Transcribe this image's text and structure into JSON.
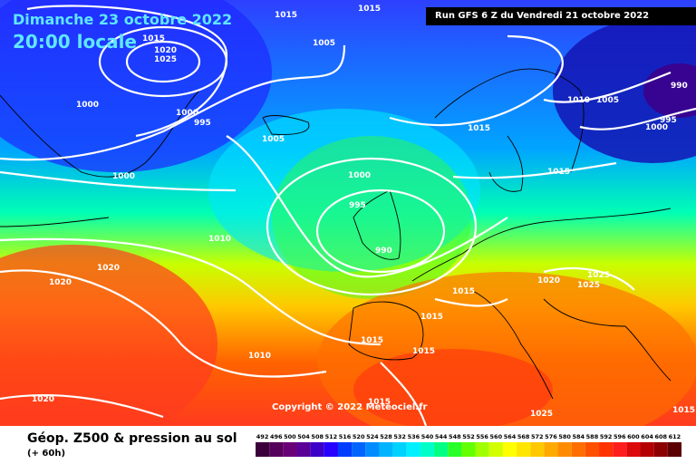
{
  "header": {
    "date_line": "Dimanche 23 octobre 2022",
    "time_line": "20:00 locale",
    "run_info": "Run GFS 6 Z du Vendredi 21 octobre 2022"
  },
  "map": {
    "copyright": "Copyright © 2022 Meteociel.fr",
    "isobar_labels": [
      "1015",
      "1015",
      "1015",
      "1020",
      "1025",
      "1005",
      "1000",
      "1000",
      "995",
      "1005",
      "1000",
      "1010",
      "1005",
      "990",
      "995",
      "1000",
      "1015",
      "1000",
      "995",
      "990",
      "1015",
      "1020",
      "1025",
      "1025",
      "1020",
      "1015",
      "1015",
      "1015",
      "1015",
      "1010",
      "1020",
      "1015",
      "1025",
      "1010",
      "1015",
      "1020"
    ]
  },
  "footer": {
    "title": "Géop. Z500 & pression au sol",
    "subtitle": "(+ 60h)"
  },
  "scale": {
    "labels": [
      "492",
      "496",
      "500",
      "504",
      "508",
      "512",
      "516",
      "520",
      "524",
      "528",
      "532",
      "536",
      "540",
      "544",
      "548",
      "552",
      "556",
      "560",
      "564",
      "568",
      "572",
      "576",
      "580",
      "584",
      "588",
      "592",
      "596",
      "600",
      "604",
      "608",
      "612"
    ],
    "colors": [
      "#3b003b",
      "#55005a",
      "#6a0078",
      "#5a0096",
      "#3c00c8",
      "#2800ff",
      "#003cff",
      "#0064ff",
      "#008cff",
      "#00b4ff",
      "#00d2ff",
      "#00f0ff",
      "#00ffc8",
      "#00ff82",
      "#28ff28",
      "#64ff00",
      "#a0ff00",
      "#d2ff00",
      "#ffff00",
      "#ffe600",
      "#ffc800",
      "#ffaa00",
      "#ff8c00",
      "#ff6e00",
      "#ff5000",
      "#ff3200",
      "#ff1e1e",
      "#dc0a0a",
      "#b40000",
      "#8c0000",
      "#5a0000"
    ]
  }
}
